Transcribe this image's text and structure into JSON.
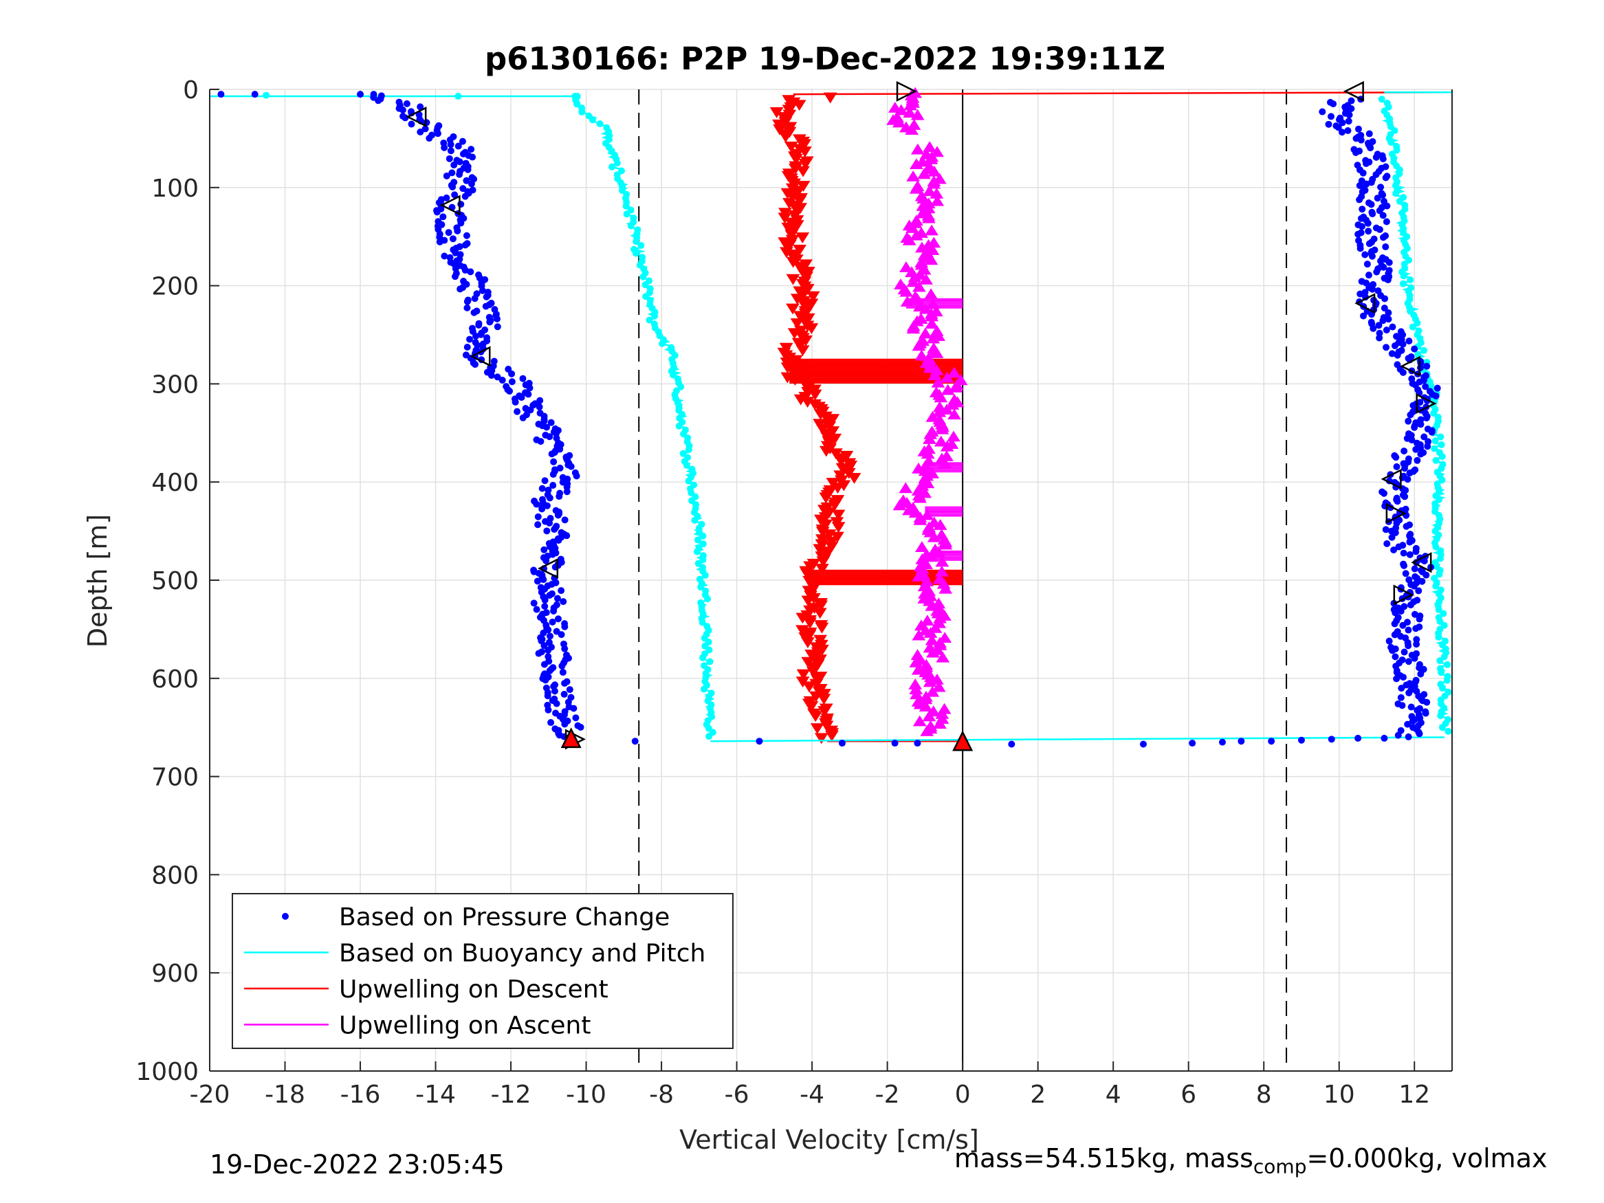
{
  "chart_data": {
    "type": "scatter",
    "title": "p6130166: P2P 19-Dec-2022 19:39:11Z",
    "xlabel": "Vertical Velocity [cm/s]",
    "ylabel": "Depth [m]",
    "xlim": [
      -20,
      13
    ],
    "ylim": [
      0,
      1000
    ],
    "y_reversed": true,
    "grid": true,
    "xticks": [
      -20,
      -18,
      -16,
      -14,
      -12,
      -10,
      -8,
      -6,
      -4,
      -2,
      0,
      2,
      4,
      6,
      8,
      10,
      12
    ],
    "yticks": [
      0,
      100,
      200,
      300,
      400,
      500,
      600,
      700,
      800,
      900,
      1000
    ],
    "reference_lines": {
      "dashed_x": [
        -8.6,
        8.6
      ],
      "solid_x": [
        0
      ]
    },
    "legend": {
      "location": "bottom-left",
      "entries": [
        {
          "label": "Based on Pressure Change",
          "color": "#0000ff",
          "style": "dot"
        },
        {
          "label": "Based on Buoyancy and Pitch",
          "color": "#00ffff",
          "style": "line"
        },
        {
          "label": "Upwelling on Descent",
          "color": "#ff0000",
          "style": "line"
        },
        {
          "label": "Upwelling on Ascent",
          "color": "#ff00ff",
          "style": "line"
        }
      ]
    },
    "series": [
      {
        "name": "Based on Pressure Change",
        "color": "#0000ff",
        "marker": "dot",
        "profiles": [
          {
            "part": "descent",
            "depth": [
              5,
              15,
              30,
              60,
              100,
              120,
              160,
              200,
              240,
              275,
              300,
              320,
              350,
              390,
              420,
              460,
              490,
              520,
              560,
              600,
              640,
              660
            ],
            "velocity": [
              -15.8,
              -14.8,
              -14.5,
              -13.4,
              -13.3,
              -13.6,
              -13.5,
              -13.0,
              -12.7,
              -12.9,
              -11.8,
              -11.6,
              -11.0,
              -10.6,
              -11.0,
              -10.9,
              -11.0,
              -11.0,
              -10.9,
              -10.8,
              -10.6,
              -10.4
            ]
          },
          {
            "part": "ascent",
            "depth": [
              660,
              640,
              600,
              560,
              520,
              490,
              460,
              430,
              400,
              370,
              330,
              300,
              280,
              250,
              220,
              180,
              150,
              110,
              80,
              50,
              30,
              10
            ],
            "velocity": [
              11.8,
              12.0,
              11.9,
              11.7,
              11.8,
              12.2,
              11.6,
              11.5,
              11.5,
              11.9,
              12.3,
              12.3,
              11.9,
              11.4,
              10.8,
              11.0,
              10.9,
              10.9,
              10.9,
              10.6,
              9.8,
              10.2
            ]
          }
        ],
        "turnaround_points": [
          {
            "depth": 5,
            "velocity": -19.7
          },
          {
            "depth": 5,
            "velocity": -18.8
          },
          {
            "depth": 5,
            "velocity": -16.0
          },
          {
            "depth": 664,
            "velocity": -8.7
          },
          {
            "depth": 664,
            "velocity": -5.4
          },
          {
            "depth": 666,
            "velocity": -3.2
          },
          {
            "depth": 666,
            "velocity": -1.8
          },
          {
            "depth": 666,
            "velocity": -1.2
          },
          {
            "depth": 667,
            "velocity": 1.3
          },
          {
            "depth": 667,
            "velocity": 4.8
          },
          {
            "depth": 666,
            "velocity": 6.1
          },
          {
            "depth": 665,
            "velocity": 6.9
          },
          {
            "depth": 664,
            "velocity": 7.4
          },
          {
            "depth": 664,
            "velocity": 8.2
          },
          {
            "depth": 663,
            "velocity": 9.0
          },
          {
            "depth": 662,
            "velocity": 9.8
          },
          {
            "depth": 661,
            "velocity": 10.5
          },
          {
            "depth": 661,
            "velocity": 11.2
          }
        ]
      },
      {
        "name": "Based on Buoyancy and Pitch",
        "color": "#00ffff",
        "marker": "line+dot",
        "profiles": [
          {
            "part": "descent",
            "depth": [
              7,
              20,
              40,
              70,
              100,
              150,
              200,
              240,
              270,
              300,
              350,
              400,
              450,
              500,
              550,
              600,
              640,
              660
            ],
            "velocity": [
              -10.3,
              -10.1,
              -9.5,
              -9.3,
              -9.0,
              -8.7,
              -8.4,
              -8.2,
              -7.7,
              -7.6,
              -7.4,
              -7.2,
              -7.0,
              -6.9,
              -6.8,
              -6.8,
              -6.7,
              -6.7
            ]
          },
          {
            "part": "ascent",
            "depth": [
              655,
              600,
              550,
              500,
              450,
              400,
              350,
              310,
              290,
              250,
              200,
              150,
              100,
              60,
              30,
              10
            ],
            "velocity": [
              12.8,
              12.8,
              12.7,
              12.6,
              12.6,
              12.7,
              12.6,
              12.5,
              12.3,
              12.1,
              11.8,
              11.7,
              11.6,
              11.5,
              11.3,
              11.2
            ]
          }
        ],
        "transition_lines": [
          {
            "depth": [
              7,
              7
            ],
            "velocity": [
              -20,
              -10.3
            ]
          },
          {
            "depth": [
              664,
              660
            ],
            "velocity": [
              -6.7,
              12.8
            ]
          },
          {
            "depth": [
              3,
              3
            ],
            "velocity": [
              11.2,
              13
            ]
          }
        ]
      },
      {
        "name": "Upwelling on Descent",
        "color": "#ff0000",
        "marker": "triangle-down",
        "profiles": [
          {
            "part": "descent",
            "depth": [
              10,
              30,
              60,
              100,
              150,
              200,
              250,
              275,
              300,
              340,
              370,
              390,
              420,
              460,
              500,
              550,
              600,
              640,
              660
            ],
            "velocity": [
              -4.5,
              -4.9,
              -4.3,
              -4.5,
              -4.5,
              -4.2,
              -4.3,
              -4.6,
              -4.3,
              -3.6,
              -3.4,
              -3.0,
              -3.5,
              -3.6,
              -4.0,
              -4.0,
              -4.0,
              -3.8,
              -3.6
            ]
          }
        ],
        "bands": [
          {
            "depth": [
              275,
              300
            ],
            "velocity": [
              -4.6,
              0
            ]
          },
          {
            "depth": [
              490,
              505
            ],
            "velocity": [
              -4.0,
              0
            ]
          }
        ],
        "transition_lines": [
          {
            "depth": [
              5,
              3
            ],
            "velocity": [
              -4.5,
              13
            ]
          },
          {
            "depth": [
              664,
              664
            ],
            "velocity": [
              -3.6,
              0
            ]
          }
        ]
      },
      {
        "name": "Upwelling on Ascent",
        "color": "#ff00ff",
        "marker": "triangle-up",
        "profiles": [
          {
            "part": "ascent",
            "depth": [
              655,
              600,
              550,
              500,
              450,
              420,
              400,
              350,
              300,
              270,
              220,
              200,
              150,
              100,
              60,
              40,
              20,
              5
            ],
            "velocity": [
              -0.8,
              -0.9,
              -0.8,
              -0.8,
              -0.8,
              -1.5,
              -1.0,
              -0.5,
              -0.3,
              -0.8,
              -1.1,
              -1.3,
              -1.1,
              -1.0,
              -0.9,
              -1.5,
              -1.5,
              -1.0
            ]
          }
        ],
        "spikes": [
          {
            "depth": 218,
            "velocity": [
              -1.5,
              0
            ]
          },
          {
            "depth": 385,
            "velocity": [
              -1.0,
              0
            ]
          },
          {
            "depth": 430,
            "velocity": [
              -1.0,
              0
            ]
          },
          {
            "depth": 475,
            "velocity": [
              -0.8,
              0
            ]
          }
        ]
      }
    ],
    "markers": [
      {
        "type": "triangle-left",
        "depth": 28,
        "velocity": -14.5
      },
      {
        "type": "triangle-left",
        "depth": 118,
        "velocity": -13.6
      },
      {
        "type": "triangle-left",
        "depth": 272,
        "velocity": -12.8
      },
      {
        "type": "triangle-left",
        "depth": 488,
        "velocity": -11.0
      },
      {
        "type": "triangle-right",
        "depth": 662,
        "velocity": -10.3
      },
      {
        "type": "triangle-right",
        "depth": 2,
        "velocity": -1.5
      },
      {
        "type": "triangle-left",
        "depth": 2,
        "velocity": 10.4
      },
      {
        "type": "triangle-left",
        "depth": 218,
        "velocity": 10.7
      },
      {
        "type": "triangle-left",
        "depth": 282,
        "velocity": 11.9
      },
      {
        "type": "triangle-right",
        "depth": 320,
        "velocity": 12.3
      },
      {
        "type": "triangle-left",
        "depth": 397,
        "velocity": 11.4
      },
      {
        "type": "triangle-right",
        "depth": 432,
        "velocity": 11.5
      },
      {
        "type": "triangle-left",
        "depth": 482,
        "velocity": 12.2
      },
      {
        "type": "triangle-right",
        "depth": 515,
        "velocity": 11.7
      },
      {
        "type": "triangle-up-filled",
        "depth": 661,
        "velocity": -10.4,
        "color": "#ff0000"
      },
      {
        "type": "triangle-up-filled",
        "depth": 664,
        "velocity": 0.0,
        "color": "#ff0000"
      }
    ]
  },
  "footer": {
    "timestamp": "19-Dec-2022 23:05:45",
    "mass_text_a": "mass=54.515kg, mass",
    "mass_sub": "comp",
    "mass_text_b": "=0.000kg, volmax"
  }
}
